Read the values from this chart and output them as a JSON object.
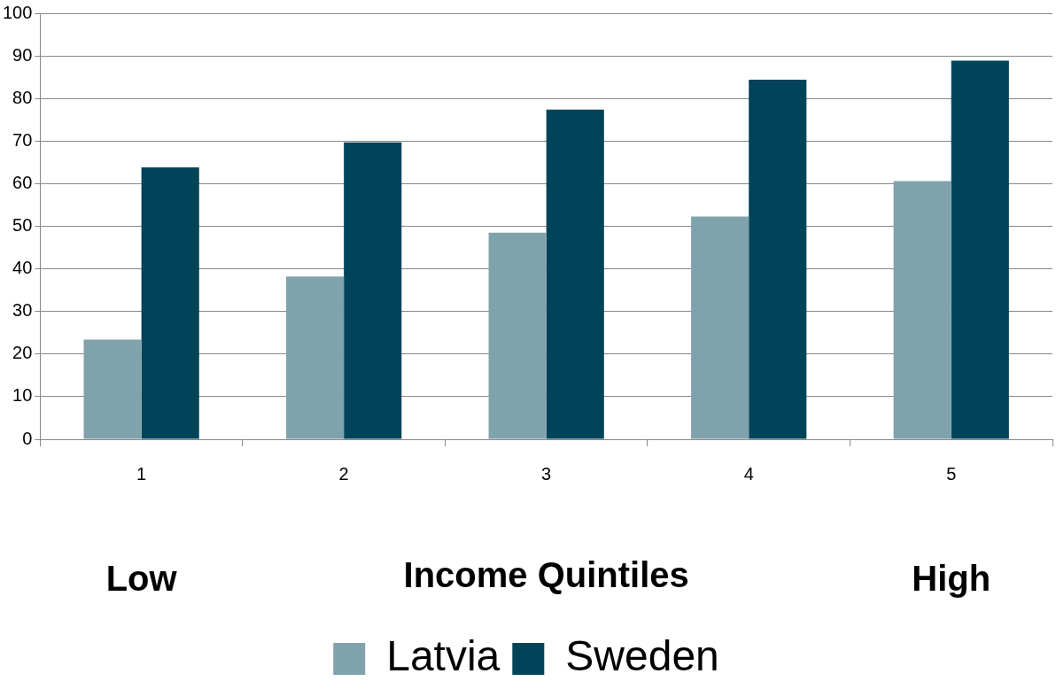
{
  "chart_data": {
    "type": "bar",
    "xlabel": "Income Quintiles",
    "annotations": [
      "Low",
      "High"
    ],
    "categories": [
      "1",
      "2",
      "3",
      "4",
      "5"
    ],
    "series": [
      {
        "name": "Latvia",
        "color": "#7fa2ac",
        "values": [
          23.4,
          38.2,
          48.5,
          52.3,
          60.6
        ]
      },
      {
        "name": "Sweden",
        "color": "#01445a",
        "values": [
          63.8,
          69.7,
          77.4,
          84.4,
          88.9
        ]
      }
    ],
    "ylim": [
      0,
      100
    ],
    "yticks": [
      0,
      10,
      20,
      30,
      40,
      50,
      60,
      70,
      80,
      90,
      100
    ],
    "grid": "y",
    "legend": "bottom"
  }
}
